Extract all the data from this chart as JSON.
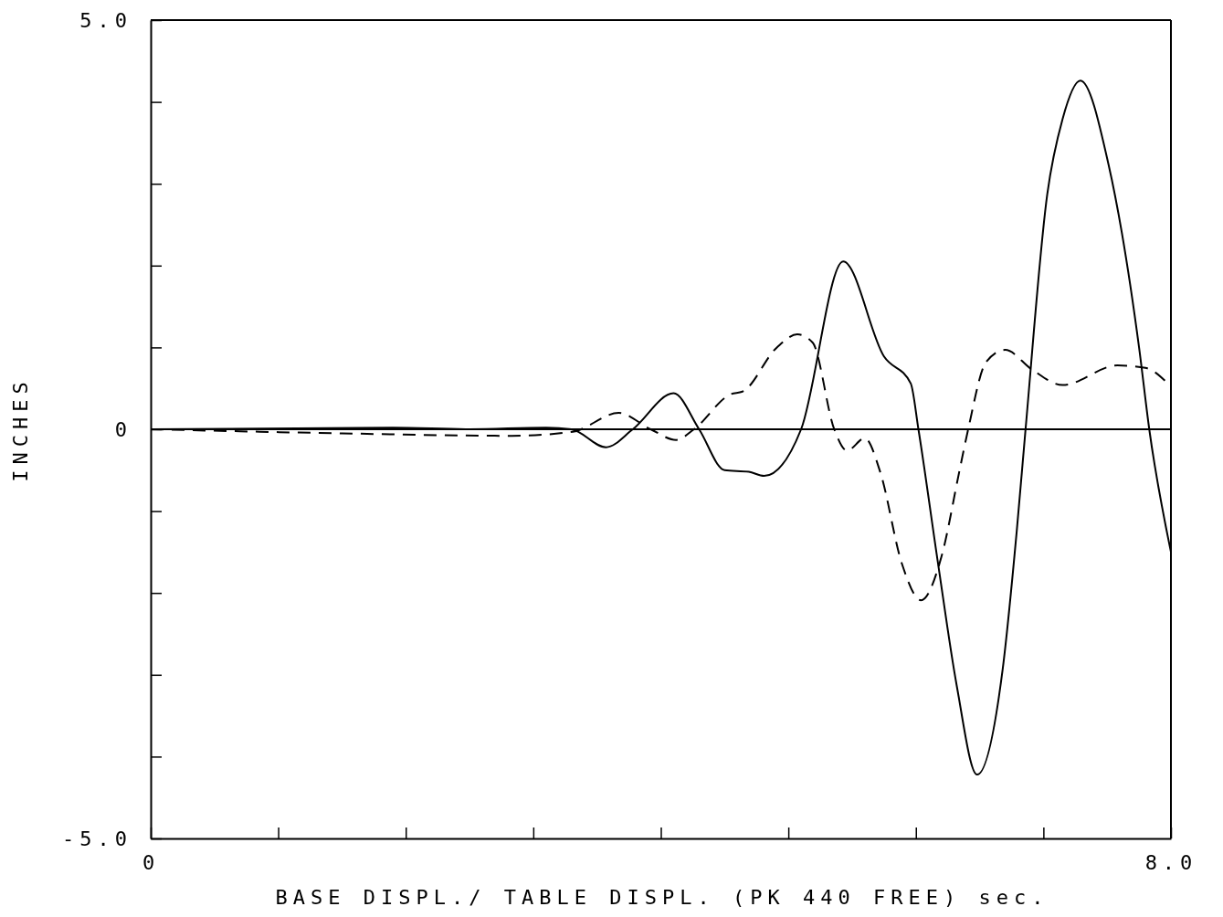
{
  "chart_data": {
    "type": "line",
    "xlabel": "BASE DISPL./ TABLE DISPL. (PK 440 FREE) sec.",
    "ylabel": "INCHES",
    "xlim": [
      0,
      8
    ],
    "ylim": [
      -5,
      5
    ],
    "xticks": [
      0,
      {
        "value": 1,
        "label": null
      },
      {
        "value": 2,
        "label": null
      },
      {
        "value": 3,
        "label": null
      },
      {
        "value": 4,
        "label": null
      },
      {
        "value": 5,
        "label": null
      },
      {
        "value": 6,
        "label": null
      },
      {
        "value": 7,
        "label": null
      },
      {
        "value": 8,
        "label": "8.0"
      }
    ],
    "yticks": [
      {
        "value": -5,
        "label": "-5.0"
      },
      {
        "value": -4,
        "label": null
      },
      {
        "value": -3,
        "label": null
      },
      {
        "value": -2,
        "label": null
      },
      {
        "value": -1,
        "label": null
      },
      0,
      {
        "value": 1,
        "label": null
      },
      {
        "value": 2,
        "label": null
      },
      {
        "value": 3,
        "label": null
      },
      {
        "value": 4,
        "label": null
      },
      {
        "value": 5,
        "label": "5.0"
      }
    ],
    "ref_lines": [
      {
        "axis": "y",
        "value": 0,
        "color": "#000000"
      }
    ],
    "series": [
      {
        "color": "#000000",
        "line_style": "solid",
        "x": [
          0,
          1.9,
          2.5,
          3.1,
          3.3,
          3.57,
          3.78,
          4.1,
          4.3,
          4.5,
          4.69,
          4.81,
          5.1,
          5.43,
          5.75,
          5.96,
          6.02,
          6.17,
          6.32,
          6.48,
          6.68,
          6.79,
          6.86,
          7.03,
          7.15,
          7.29,
          7.51,
          7.75,
          7.83,
          8
        ],
        "values": [
          0,
          0.02,
          0,
          0.02,
          0,
          -0.22,
          0,
          0.44,
          0,
          -0.5,
          -0.52,
          -0.57,
          0,
          2.05,
          0.89,
          0.56,
          0,
          -1.6,
          -3.13,
          -4.22,
          -2.94,
          -1.26,
          0,
          2.87,
          3.79,
          4.26,
          3.24,
          1,
          0,
          -1.5
        ]
      },
      {
        "color": "#000000",
        "line_style": "dashed",
        "x": [
          0,
          1.5,
          2.83,
          3.31,
          3.67,
          3.92,
          4.12,
          4.26,
          4.55,
          4.64,
          4.91,
          5.07,
          5.19,
          5.36,
          5.46,
          5.6,
          5.72,
          5.89,
          6.04,
          6.2,
          6.34,
          6.41,
          6.55,
          6.7,
          6.91,
          7.15,
          7.58,
          7.8,
          8
        ],
        "values": [
          0,
          -0.05,
          -0.08,
          -0.03,
          0.2,
          0,
          -0.13,
          0,
          0.43,
          0.46,
          1,
          1.16,
          1.06,
          0,
          -0.26,
          -0.11,
          -0.52,
          -1.64,
          -2.09,
          -1.56,
          -0.52,
          0,
          0.82,
          0.97,
          0.73,
          0.54,
          0.78,
          0.75,
          0.52
        ]
      }
    ]
  }
}
